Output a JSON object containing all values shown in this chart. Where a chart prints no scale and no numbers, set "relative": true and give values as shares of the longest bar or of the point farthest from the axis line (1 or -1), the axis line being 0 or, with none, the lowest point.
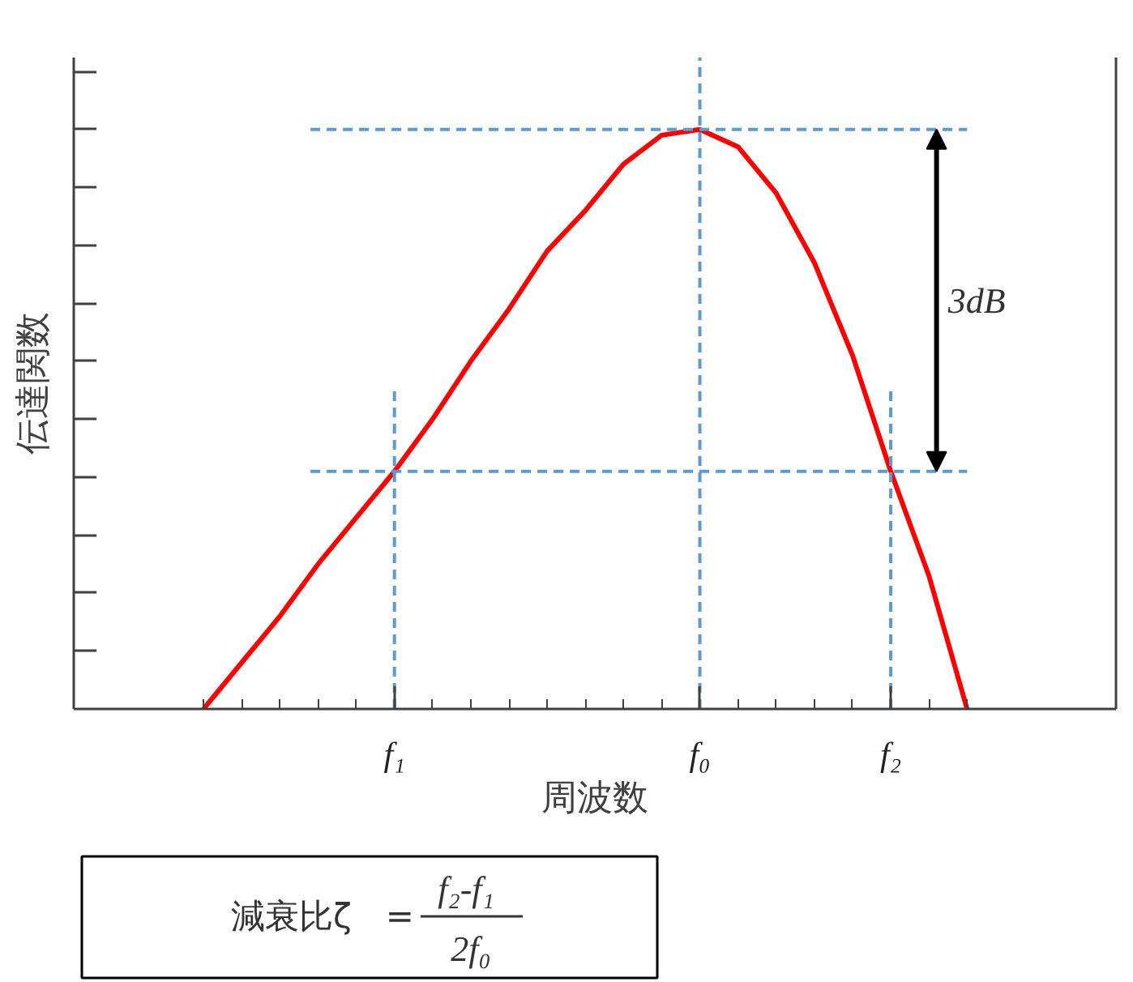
{
  "chart_data": {
    "type": "line",
    "relative": true,
    "xlabel": "周波数",
    "ylabel": "伝達関数",
    "categories": [
      null,
      null,
      null,
      null,
      null,
      "f₁",
      null,
      null,
      null,
      null,
      null,
      null,
      null,
      "f₀",
      null,
      null,
      null,
      null,
      "f₂",
      null,
      null
    ],
    "series": [
      {
        "color": "#ff0000",
        "values": [
          0,
          0.08,
          0.16,
          0.25,
          0.33,
          0.41,
          0.5,
          0.6,
          0.69,
          0.79,
          0.86,
          0.94,
          0.99,
          1,
          0.97,
          0.89,
          0.77,
          0.61,
          0.41,
          0.23,
          0
        ]
      }
    ],
    "ref_lines": [
      {
        "axis": "x",
        "value": "f₁",
        "color": "#5b9bd5",
        "line_style": "dashed"
      },
      {
        "axis": "x",
        "value": "f₀",
        "color": "#5b9bd5",
        "line_style": "dashed"
      },
      {
        "axis": "x",
        "value": "f₂",
        "color": "#5b9bd5",
        "line_style": "dashed"
      },
      {
        "axis": "y",
        "value": 1,
        "color": "#5b9bd5",
        "line_style": "dashed"
      },
      {
        "axis": "y",
        "value": 0.41,
        "color": "#5b9bd5",
        "line_style": "dashed"
      }
    ],
    "annotations": [
      "3dB",
      "減衰比ζ　=",
      "f₂-f₁",
      "2f₀"
    ]
  }
}
